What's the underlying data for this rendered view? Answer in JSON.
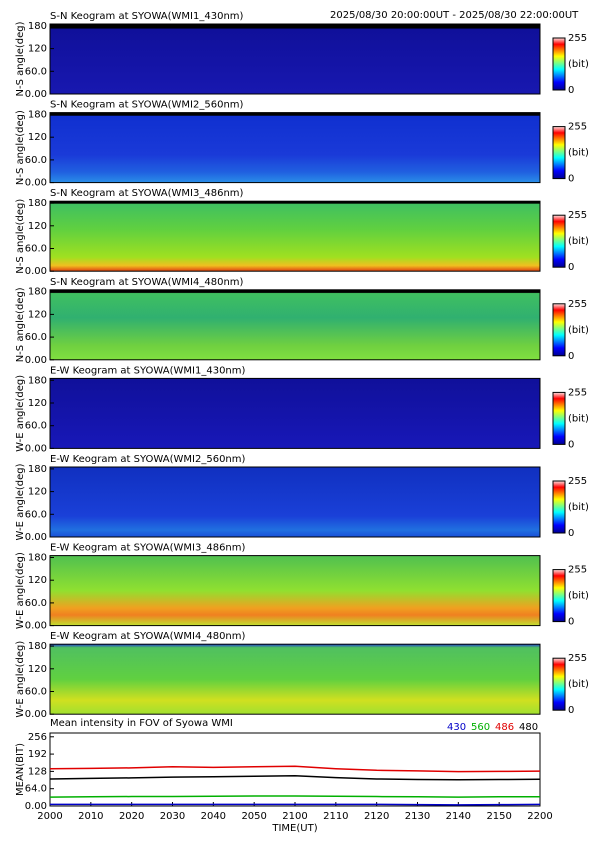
{
  "header": {
    "time_range": "2025/08/30 20:00:00UT - 2025/08/30 22:00:00UT"
  },
  "keograms": {
    "panels": [
      {
        "title": "S-N Keogram at SYOWA(WMI1_430nm)",
        "ylabel": "N-S angle(deg)"
      },
      {
        "title": "S-N Keogram at SYOWA(WMI2_560nm)",
        "ylabel": "N-S angle(deg)"
      },
      {
        "title": "S-N Keogram at SYOWA(WMI3_486nm)",
        "ylabel": "N-S angle(deg)"
      },
      {
        "title": "S-N Keogram at SYOWA(WMI4_480nm)",
        "ylabel": "N-S angle(deg)"
      },
      {
        "title": "E-W Keogram at SYOWA(WMI1_430nm)",
        "ylabel": "W-E angle(deg)"
      },
      {
        "title": "E-W Keogram at SYOWA(WMI2_560nm)",
        "ylabel": "W-E angle(deg)"
      },
      {
        "title": "E-W Keogram at SYOWA(WMI3_486nm)",
        "ylabel": "W-E angle(deg)"
      },
      {
        "title": "E-W Keogram at SYOWA(WMI4_480nm)",
        "ylabel": "W-E angle(deg)"
      }
    ],
    "ylim": [
      0,
      185
    ],
    "yticks": [
      {
        "value": 0,
        "label": "0.00"
      },
      {
        "value": 60,
        "label": "60.0"
      },
      120,
      180
    ],
    "colorbar": {
      "max": 255,
      "unit": "(bit)",
      "min": 0
    }
  },
  "chart_data": {
    "type": "line",
    "title": "Mean intensity in FOV of Syowa WMI",
    "ylabel": "MEAN(BIT)",
    "xlabel": "TIME(UT)",
    "categories": [
      "2000",
      "2010",
      "2020",
      "2030",
      "2040",
      "2050",
      "2100",
      "2110",
      "2120",
      "2130",
      "2140",
      "2150",
      "2200"
    ],
    "ylim": [
      0,
      270
    ],
    "yticks": [
      {
        "value": 0,
        "label": "0.00"
      },
      {
        "value": 64,
        "label": "64.0"
      },
      128,
      192,
      256
    ],
    "series": [
      {
        "name": "430",
        "color": "#0000c8",
        "values": [
          6,
          6,
          6,
          6,
          6,
          6,
          6,
          6,
          6,
          5,
          4,
          5,
          6
        ]
      },
      {
        "name": "560",
        "color": "#00b000",
        "values": [
          33,
          34,
          35,
          35,
          36,
          37,
          37,
          36,
          35,
          34,
          33,
          34,
          34
        ]
      },
      {
        "name": "486",
        "color": "#e00000",
        "values": [
          138,
          139,
          141,
          145,
          143,
          145,
          147,
          138,
          132,
          130,
          127,
          128,
          129
        ]
      },
      {
        "name": "480",
        "color": "#000000",
        "values": [
          100,
          102,
          104,
          107,
          108,
          110,
          112,
          105,
          100,
          98,
          97,
          98,
          99
        ]
      }
    ]
  }
}
